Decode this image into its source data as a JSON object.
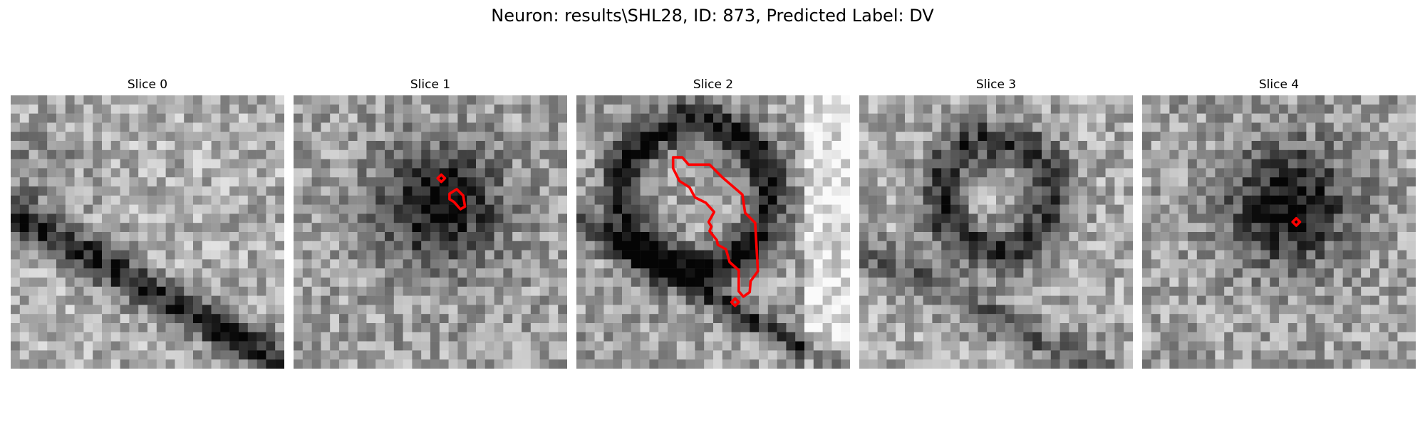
{
  "figure": {
    "title": "Neuron: results\\SHL28, ID: 873, Predicted Label: DV"
  },
  "panels": [
    {
      "title": "Slice 0",
      "seed": 11,
      "darkness": "diagonal-band",
      "contour": "none"
    },
    {
      "title": "Slice 1",
      "seed": 23,
      "darkness": "central-blob",
      "contour": "small-marks"
    },
    {
      "title": "Slice 2",
      "seed": 37,
      "darkness": "ring-with-bright-right",
      "contour": "large-outline"
    },
    {
      "title": "Slice 3",
      "seed": 51,
      "darkness": "ring",
      "contour": "none"
    },
    {
      "title": "Slice 4",
      "seed": 67,
      "darkness": "central-blob",
      "contour": "single-dot"
    }
  ],
  "colors": {
    "contour": "#ff0000",
    "background": "#ffffff"
  }
}
